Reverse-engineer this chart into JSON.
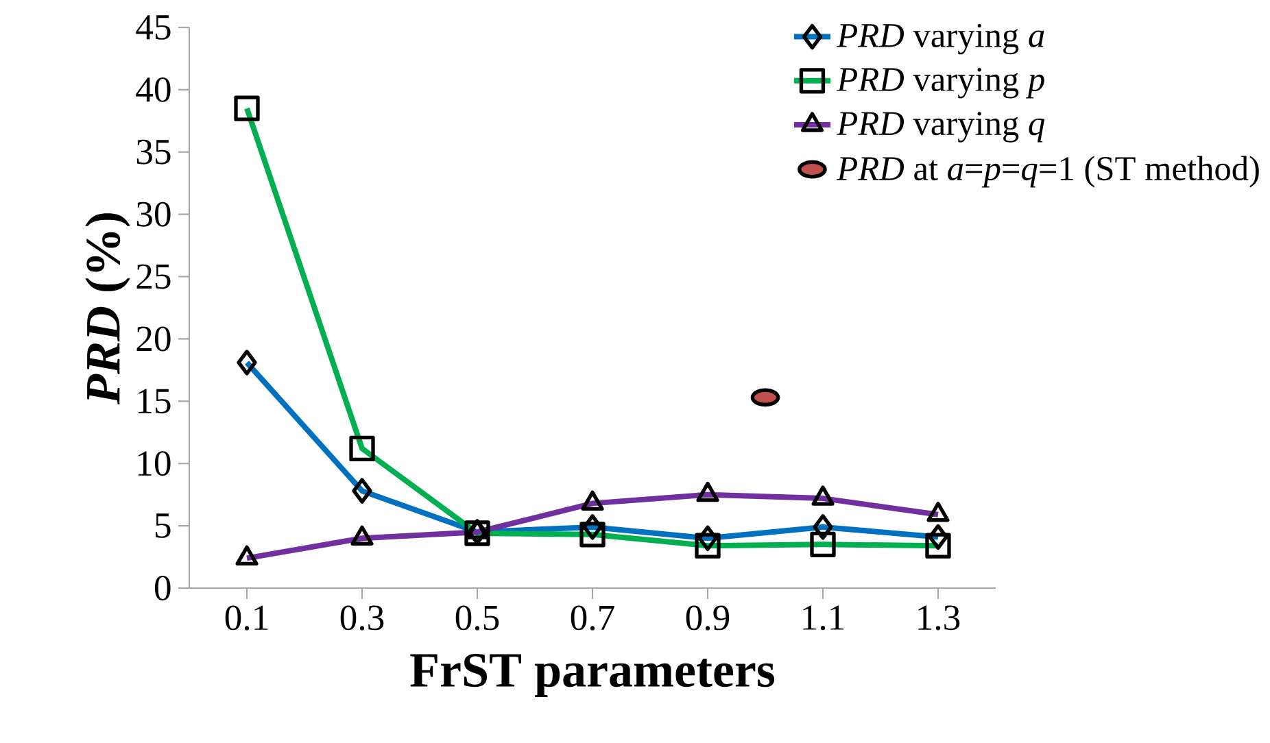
{
  "chart_data": {
    "type": "line",
    "xlabel": "FrST parameters",
    "ylabel": "*PRD* (%)",
    "x": [
      0.1,
      0.3,
      0.5,
      0.7,
      0.9,
      1.1,
      1.3
    ],
    "xlim": [
      0,
      1.4
    ],
    "ylim": [
      0,
      45
    ],
    "xticks": [
      0.1,
      0.3,
      0.5,
      0.7,
      0.9,
      1.1,
      1.3
    ],
    "yticks": [
      0,
      5,
      10,
      15,
      20,
      25,
      30,
      35,
      40,
      45
    ],
    "grid": false,
    "legend": "top right",
    "series": [
      {
        "name": "*PRD* varying *a*",
        "color": "#0070c0",
        "marker": "diamond",
        "values": [
          18.1,
          7.8,
          4.5,
          4.9,
          4.0,
          4.9,
          4.1
        ]
      },
      {
        "name": "*PRD* varying *p*",
        "color": "#00b050",
        "marker": "square",
        "values": [
          38.5,
          11.2,
          4.4,
          4.3,
          3.4,
          3.5,
          3.4
        ]
      },
      {
        "name": "*PRD* varying *q*",
        "color": "#7030a0",
        "marker": "triangle",
        "values": [
          2.4,
          4.0,
          4.5,
          6.8,
          7.5,
          7.2,
          5.9
        ]
      },
      {
        "name": "*PRD* at *a*=*p*=*q*=1 (ST method)",
        "type": "scatter",
        "color": "#c0504d",
        "marker": "circle",
        "x": [
          1.0
        ],
        "values": [
          15.3
        ]
      }
    ]
  }
}
